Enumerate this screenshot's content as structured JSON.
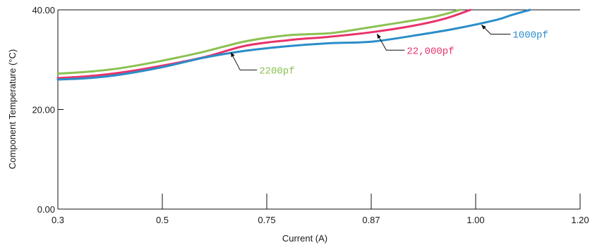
{
  "chart_data": {
    "type": "line",
    "title": "",
    "xlabel": "Current (A)",
    "ylabel": "Component Temperature (°C)",
    "x_categories": [
      "0.3",
      "0.5",
      "0.75",
      "0.87",
      "1.00",
      "1.20"
    ],
    "xlim": [
      0,
      5
    ],
    "x_scale": "categorical-spaced (tick labels are equally spaced)",
    "y_ticks": [
      "0.00",
      "20.00",
      "40.00"
    ],
    "ylim": [
      0,
      40
    ],
    "grid": false,
    "legend": "none (series labelled with arrows)",
    "series": [
      {
        "name": "2200pf",
        "color": "#8cc152",
        "x": [
          0,
          0.3,
          0.6,
          1.0,
          1.4,
          1.8,
          2.2,
          2.6,
          2.9,
          3.2,
          3.6,
          3.85
        ],
        "y": [
          27.2,
          27.6,
          28.3,
          29.8,
          31.6,
          33.7,
          34.9,
          35.3,
          36.2,
          37.2,
          38.6,
          40.0
        ]
      },
      {
        "name": "22,000pf",
        "color": "#e8336b",
        "x": [
          0,
          0.3,
          0.6,
          1.0,
          1.4,
          1.8,
          2.2,
          2.6,
          3.0,
          3.4,
          3.7,
          3.95
        ],
        "y": [
          26.3,
          26.7,
          27.4,
          28.8,
          30.5,
          32.8,
          33.9,
          34.6,
          35.5,
          36.8,
          38.2,
          40.0
        ]
      },
      {
        "name": "1000pf",
        "color": "#2a8dc9",
        "x": [
          0,
          0.3,
          0.6,
          1.0,
          1.4,
          1.8,
          2.2,
          2.6,
          3.0,
          3.4,
          3.8,
          4.2,
          4.35,
          4.52
        ],
        "y": [
          26.0,
          26.3,
          27.0,
          28.5,
          30.4,
          31.8,
          32.7,
          33.3,
          33.6,
          34.8,
          36.2,
          38.0,
          39.0,
          40.0
        ]
      }
    ],
    "annotations": [
      {
        "text": "2200pf",
        "series": "2200pf",
        "x": 1.65,
        "y": 31.6
      },
      {
        "text": "22,000pf",
        "series": "22,000pf",
        "x": 3.05,
        "y": 35.3
      },
      {
        "text": "1000pf",
        "series": "1000pf",
        "x": 4.05,
        "y": 37.1
      }
    ]
  }
}
